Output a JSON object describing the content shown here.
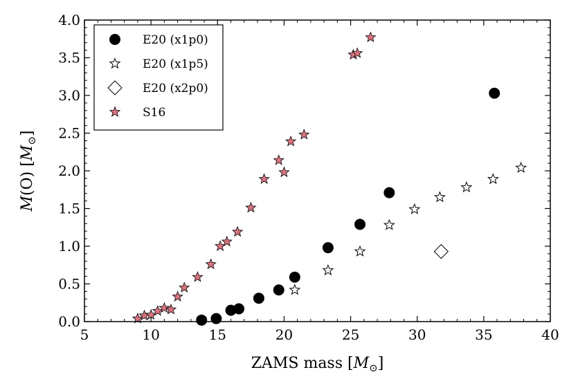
{
  "chart_data": {
    "type": "scatter",
    "title": "",
    "xlabel": {
      "prefix": "ZAMS mass [",
      "symbol": "M",
      "sub": "⊙",
      "suffix": "]"
    },
    "ylabel": {
      "prefix": "",
      "symbol": "M",
      "mid": "(O) [",
      "symbol2": "M",
      "sub": "⊙",
      "suffix": "]"
    },
    "xlim": [
      5,
      40
    ],
    "ylim": [
      0,
      4
    ],
    "xticks": [
      5,
      10,
      15,
      20,
      25,
      30,
      35,
      40
    ],
    "yticks": [
      0.0,
      0.5,
      1.0,
      1.5,
      2.0,
      2.5,
      3.0,
      3.5,
      4.0
    ],
    "xtick_labels": [
      "5",
      "10",
      "15",
      "20",
      "25",
      "30",
      "35",
      "40"
    ],
    "ytick_labels": [
      "0.0",
      "0.5",
      "1.0",
      "1.5",
      "2.0",
      "2.5",
      "3.0",
      "3.5",
      "4.0"
    ],
    "grid": false,
    "legend_position": "top-left",
    "series": [
      {
        "name": "E20 (x1p0)",
        "marker": "circle",
        "color": "#000000",
        "points": [
          [
            13.8,
            0.02
          ],
          [
            14.9,
            0.04
          ],
          [
            16.0,
            0.15
          ],
          [
            16.6,
            0.17
          ],
          [
            18.1,
            0.31
          ],
          [
            19.6,
            0.42
          ],
          [
            20.8,
            0.59
          ],
          [
            23.3,
            0.98
          ],
          [
            25.7,
            1.29
          ],
          [
            27.9,
            1.71
          ],
          [
            35.8,
            3.03
          ]
        ]
      },
      {
        "name": "E20 (x1p5)",
        "marker": "star-open",
        "color": "#ffffff",
        "points": [
          [
            20.8,
            0.42
          ],
          [
            23.3,
            0.68
          ],
          [
            25.7,
            0.93
          ],
          [
            27.9,
            1.28
          ],
          [
            29.8,
            1.49
          ],
          [
            31.7,
            1.65
          ],
          [
            33.7,
            1.78
          ],
          [
            35.7,
            1.89
          ],
          [
            37.8,
            2.04
          ]
        ]
      },
      {
        "name": "E20 (x2p0)",
        "marker": "diamond-open",
        "color": "#ffffff",
        "points": [
          [
            31.8,
            0.93
          ]
        ]
      },
      {
        "name": "S16",
        "marker": "star-filled",
        "color": "#d9747f",
        "points": [
          [
            9.0,
            0.04
          ],
          [
            9.5,
            0.08
          ],
          [
            10.0,
            0.09
          ],
          [
            10.5,
            0.14
          ],
          [
            11.0,
            0.18
          ],
          [
            11.5,
            0.16
          ],
          [
            12.0,
            0.33
          ],
          [
            12.5,
            0.45
          ],
          [
            13.5,
            0.59
          ],
          [
            14.5,
            0.76
          ],
          [
            15.2,
            1.0
          ],
          [
            15.7,
            1.06
          ],
          [
            16.5,
            1.19
          ],
          [
            17.5,
            1.51
          ],
          [
            18.5,
            1.89
          ],
          [
            19.6,
            2.14
          ],
          [
            20.0,
            1.98
          ],
          [
            20.5,
            2.39
          ],
          [
            21.5,
            2.48
          ],
          [
            25.2,
            3.54
          ],
          [
            25.5,
            3.56
          ],
          [
            26.5,
            3.77
          ]
        ]
      }
    ]
  }
}
